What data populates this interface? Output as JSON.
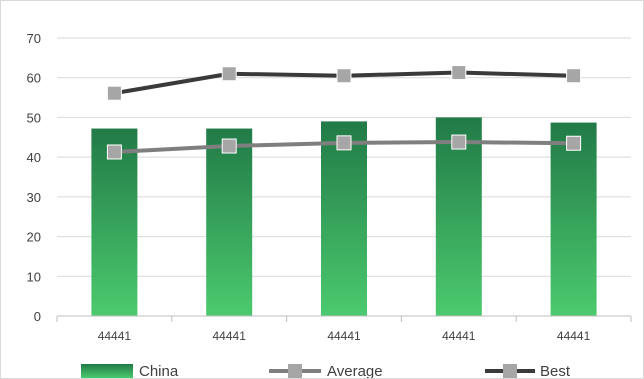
{
  "chart_data": {
    "type": "bar",
    "categories": [
      "44441",
      "44441",
      "44441",
      "44441",
      "44441"
    ],
    "series": [
      {
        "name": "China",
        "kind": "bar",
        "values": [
          47.2,
          47.2,
          49.0,
          50.0,
          48.7
        ],
        "color_top": "#217a47",
        "color_bottom": "#4cca6e"
      },
      {
        "name": "Average",
        "kind": "line",
        "values": [
          41.3,
          42.8,
          43.6,
          43.8,
          43.5
        ],
        "color": "#7f7f7f",
        "marker_color": "#a6a6a6"
      },
      {
        "name": "Best",
        "kind": "line",
        "values": [
          56.1,
          61.0,
          60.5,
          61.3,
          60.5
        ],
        "color": "#3a3a3a",
        "marker_color": "#a6a6a6"
      }
    ],
    "y_ticks": [
      "0",
      "10",
      "20",
      "30",
      "40",
      "50",
      "60",
      "70"
    ],
    "ylim": [
      0,
      70
    ],
    "grid": true,
    "legend_position": "bottom"
  }
}
